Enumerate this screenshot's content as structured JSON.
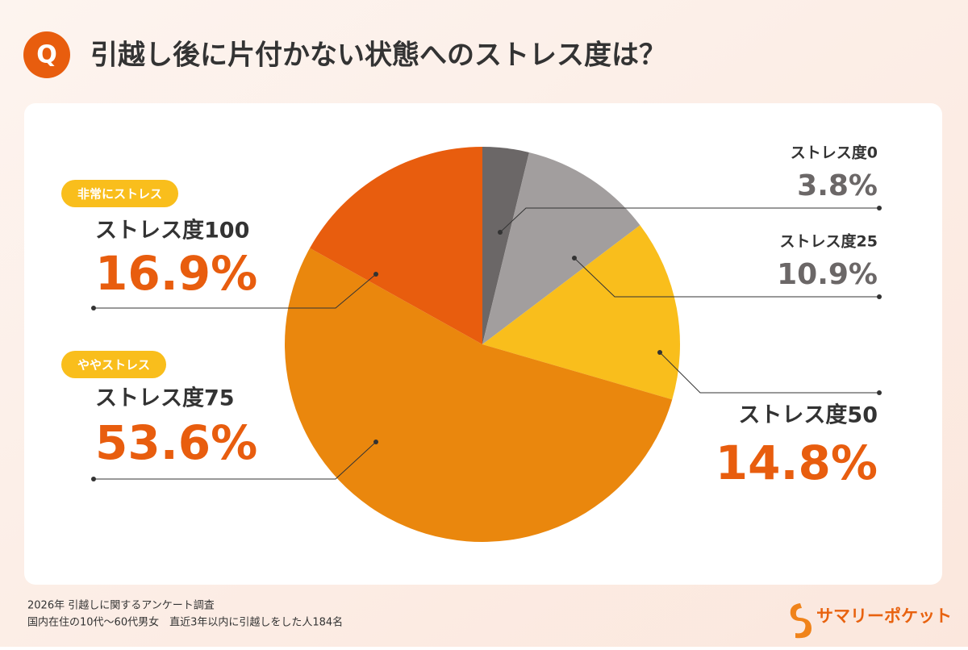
{
  "chart_data": {
    "type": "pie",
    "title": "引越し後に片付かない状態へのストレス度は？",
    "title_badge": "Q",
    "categories": [
      "ストレス度0",
      "ストレス度25",
      "ストレス度50",
      "ストレス度75",
      "ストレス度100"
    ],
    "values": [
      3.8,
      10.9,
      14.8,
      53.6,
      16.9
    ],
    "value_labels": [
      "3.8%",
      "10.9%",
      "14.8%",
      "53.6%",
      "16.9%"
    ],
    "colors": [
      "#6b6767",
      "#a29e9e",
      "#f9be1c",
      "#ea870d",
      "#e85d0e"
    ],
    "annotations": [
      "非常にストレス",
      "ややストレス"
    ]
  },
  "footer": [
    "2026年  引越しに関するアンケート調査",
    "国内在住の10代〜60代男女　直近3年以内に引越しをした人184名"
  ],
  "brand": "サマリーポケット"
}
